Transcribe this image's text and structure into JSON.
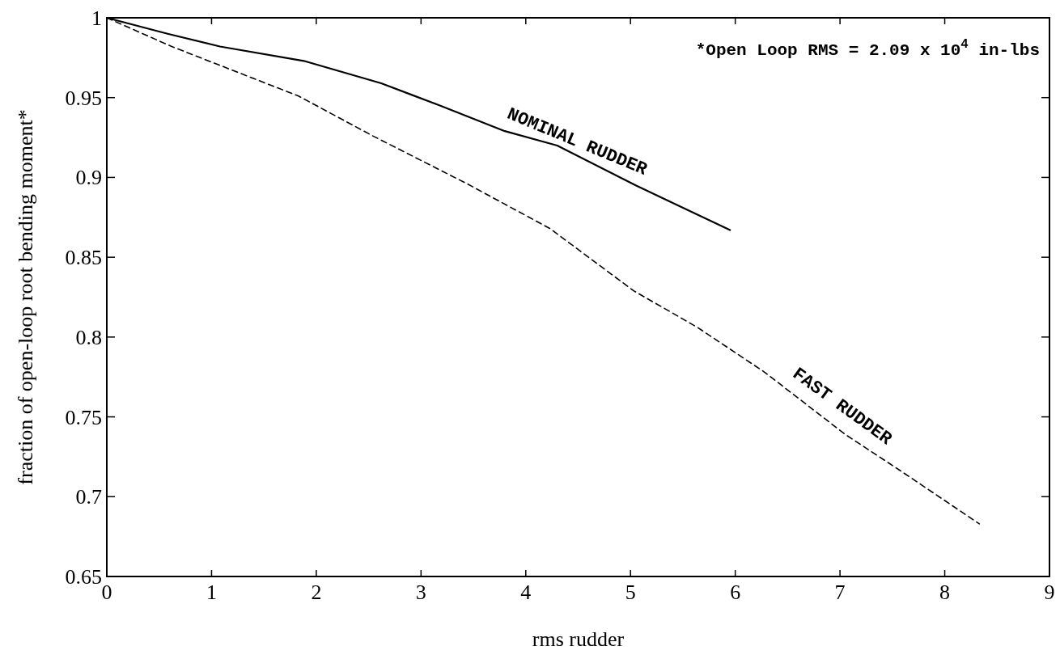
{
  "chart_data": {
    "type": "line",
    "xlabel": "rms rudder",
    "ylabel": "fraction of open-loop root bending moment*",
    "xlim": [
      0,
      9
    ],
    "ylim": [
      0.65,
      1
    ],
    "xticks": [
      0,
      1,
      2,
      3,
      4,
      5,
      6,
      7,
      8,
      9
    ],
    "yticks": [
      0.65,
      0.7,
      0.75,
      0.8,
      0.85,
      0.9,
      0.95,
      1
    ],
    "grid": false,
    "legend": false,
    "annotations": [
      "*Open Loop RMS = 2.09 x 10$^{4}$ in-lbs"
    ],
    "series": [
      {
        "name": "NOMINAL RUDDER",
        "color": "#000000",
        "line_style": "solid",
        "x": [
          0,
          0.58,
          1.08,
          1.88,
          2.62,
          3.18,
          3.8,
          4.3,
          5.05,
          5.95
        ],
        "values": [
          1,
          0.99,
          0.982,
          0.973,
          0.959,
          0.945,
          0.929,
          0.92,
          0.895,
          0.867
        ]
      },
      {
        "name": "FAST RUDDER",
        "color": "#000000",
        "line_style": "dashed",
        "x": [
          0,
          0.62,
          1.83,
          2.54,
          3.44,
          4.23,
          5.03,
          5.64,
          6.28,
          7.05,
          7.56,
          8.33
        ],
        "values": [
          1,
          0.982,
          0.951,
          0.926,
          0.896,
          0.868,
          0.829,
          0.806,
          0.778,
          0.739,
          0.717,
          0.683
        ]
      }
    ]
  }
}
